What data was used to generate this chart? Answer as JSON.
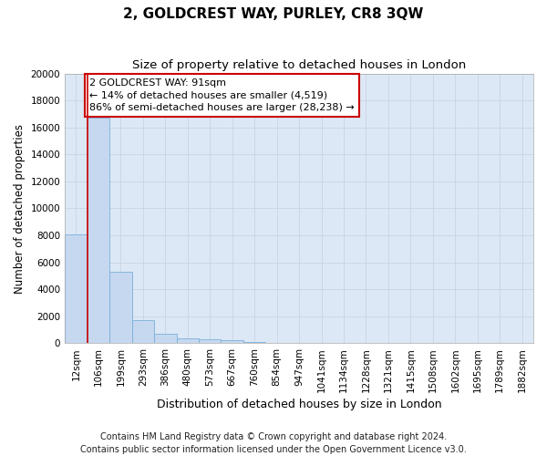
{
  "title": "2, GOLDCREST WAY, PURLEY, CR8 3QW",
  "subtitle": "Size of property relative to detached houses in London",
  "xlabel": "Distribution of detached houses by size in London",
  "ylabel": "Number of detached properties",
  "categories": [
    "12sqm",
    "106sqm",
    "199sqm",
    "293sqm",
    "386sqm",
    "480sqm",
    "573sqm",
    "667sqm",
    "760sqm",
    "854sqm",
    "947sqm",
    "1041sqm",
    "1134sqm",
    "1228sqm",
    "1321sqm",
    "1415sqm",
    "1508sqm",
    "1602sqm",
    "1695sqm",
    "1789sqm",
    "1882sqm"
  ],
  "values": [
    8100,
    16700,
    5300,
    1750,
    700,
    380,
    280,
    200,
    130,
    0,
    0,
    0,
    0,
    0,
    0,
    0,
    0,
    0,
    0,
    0,
    0
  ],
  "bar_color": "#c5d8f0",
  "bar_edge_color": "#7ab0d8",
  "vline_x": 0.5,
  "annotation_text": "2 GOLDCREST WAY: 91sqm\n← 14% of detached houses are smaller (4,519)\n86% of semi-detached houses are larger (28,238) →",
  "annotation_box_color": "#ffffff",
  "annotation_box_edge": "#cc0000",
  "vline_color": "#cc0000",
  "ylim": [
    0,
    20000
  ],
  "yticks": [
    0,
    2000,
    4000,
    6000,
    8000,
    10000,
    12000,
    14000,
    16000,
    18000,
    20000
  ],
  "grid_color": "#c8d4e0",
  "bg_color": "#dce8f5",
  "fig_bg_color": "#ffffff",
  "footer": "Contains HM Land Registry data © Crown copyright and database right 2024.\nContains public sector information licensed under the Open Government Licence v3.0.",
  "title_fontsize": 11,
  "subtitle_fontsize": 9.5,
  "xlabel_fontsize": 9,
  "ylabel_fontsize": 8.5,
  "tick_fontsize": 7.5,
  "footer_fontsize": 7,
  "annot_fontsize": 8
}
